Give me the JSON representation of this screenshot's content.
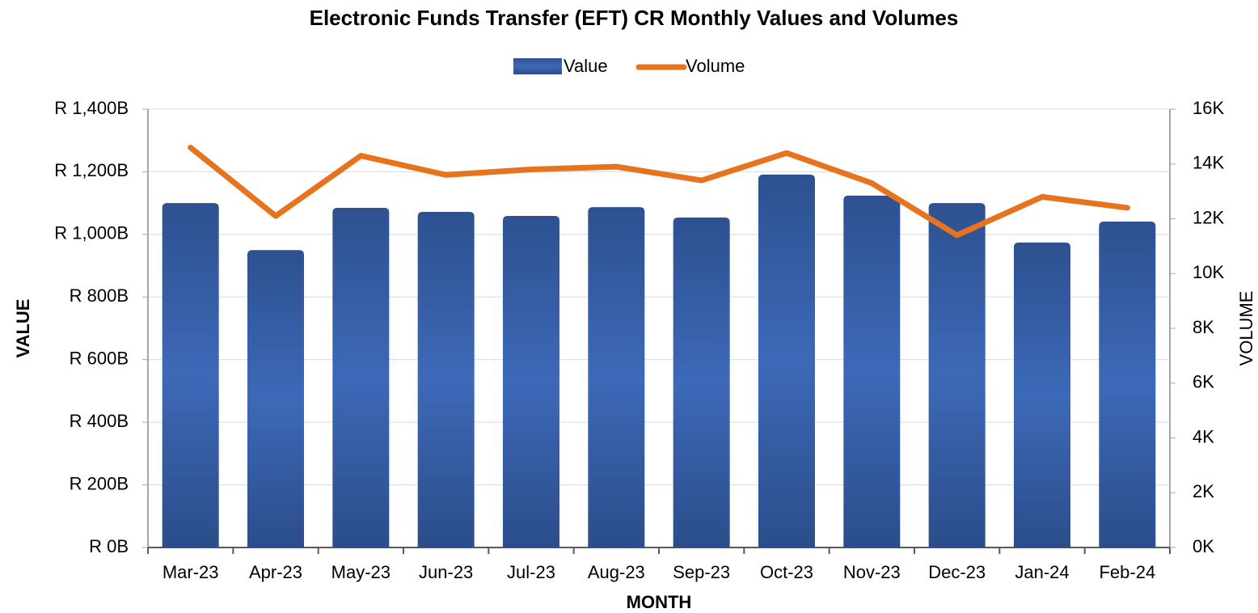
{
  "chart_data": {
    "type": "bar_line",
    "title": "Electronic Funds Transfer (EFT) CR Monthly Values and Volumes",
    "xlabel": "MONTH",
    "ylabel": "VALUE",
    "y2label": "VOLUME",
    "categories": [
      "Mar-23",
      "Apr-23",
      "May-23",
      "Jun-23",
      "Jul-23",
      "Aug-23",
      "Sep-23",
      "Oct-23",
      "Nov-23",
      "Dec-23",
      "Jan-24",
      "Feb-24"
    ],
    "series": [
      {
        "name": "Value",
        "type": "bar",
        "color": "#3a64b0",
        "values": [
          1100,
          950,
          1085,
          1072,
          1059,
          1087,
          1054,
          1191,
          1124,
          1100,
          974,
          1041
        ]
      },
      {
        "name": "Volume",
        "type": "line",
        "axis": "y2",
        "color": "#e8731f",
        "values": [
          14600,
          12100,
          14300,
          13600,
          13800,
          13900,
          13400,
          14400,
          13300,
          11400,
          12800,
          12400
        ]
      }
    ],
    "ylim": [
      0,
      1400
    ],
    "yticks": [
      {
        "value": 0,
        "label": "R 0B"
      },
      {
        "value": 200,
        "label": "R 200B"
      },
      {
        "value": 400,
        "label": "R 400B"
      },
      {
        "value": 600,
        "label": "R 600B"
      },
      {
        "value": 800,
        "label": "R 800B"
      },
      {
        "value": 1000,
        "label": "R 1,000B"
      },
      {
        "value": 1200,
        "label": "R 1,200B"
      },
      {
        "value": 1400,
        "label": "R 1,400B"
      }
    ],
    "y2lim": [
      0,
      16000
    ],
    "y2ticks": [
      {
        "value": 0,
        "label": "0K"
      },
      {
        "value": 2000,
        "label": "2K"
      },
      {
        "value": 4000,
        "label": "4K"
      },
      {
        "value": 6000,
        "label": "6K"
      },
      {
        "value": 8000,
        "label": "8K"
      },
      {
        "value": 10000,
        "label": "10K"
      },
      {
        "value": 12000,
        "label": "12K"
      },
      {
        "value": 14000,
        "label": "14K"
      },
      {
        "value": 16000,
        "label": "16K"
      }
    ],
    "grid": true,
    "legend": "top"
  }
}
